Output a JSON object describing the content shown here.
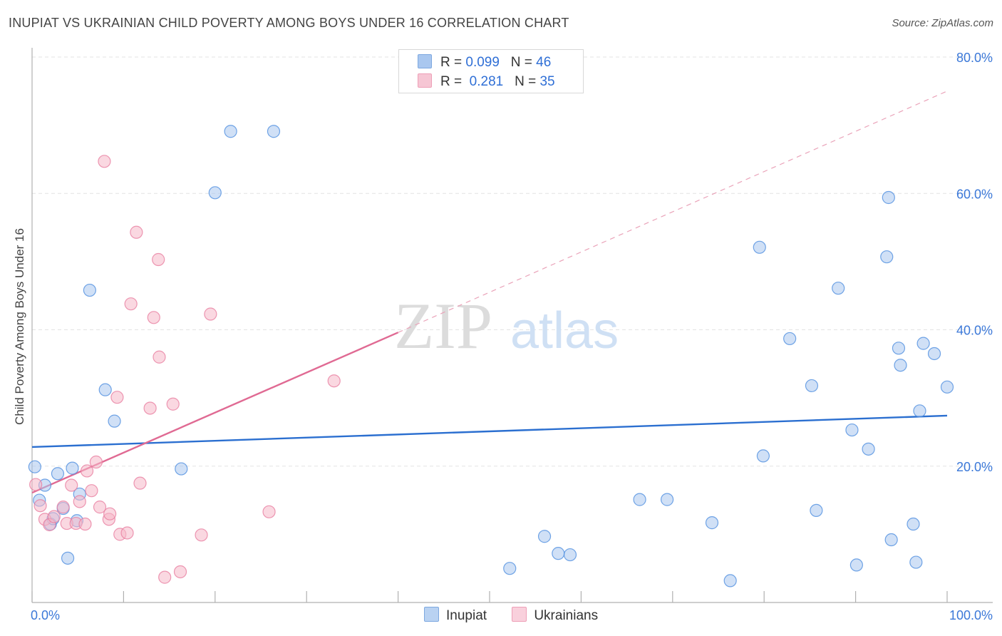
{
  "header": {
    "title": "INUPIAT VS UKRAINIAN CHILD POVERTY AMONG BOYS UNDER 16 CORRELATION CHART",
    "source": "Source: ZipAtlas.com"
  },
  "watermark": {
    "zip": "ZIP",
    "atlas": "atlas"
  },
  "legend": {
    "rows": [
      {
        "r_label": "R =",
        "r_value": "0.099",
        "n_label": "N =",
        "n_value": "46",
        "color": "#a9c7ef"
      },
      {
        "r_label": "R =",
        "r_value": "0.281",
        "n_label": "N =",
        "n_value": "35",
        "color": "#f6b8c9"
      }
    ]
  },
  "bottom_legend": {
    "items": [
      {
        "label": "Inupiat",
        "color": "#a9c7ef"
      },
      {
        "label": "Ukrainians",
        "color": "#f6b8c9"
      }
    ]
  },
  "chart_data": {
    "type": "scatter",
    "title": "INUPIAT VS UKRAINIAN CHILD POVERTY AMONG BOYS UNDER 16 CORRELATION CHART",
    "xlabel": "",
    "ylabel": "Child Poverty Among Boys Under 16",
    "xlim": [
      0,
      100
    ],
    "ylim": [
      0,
      80
    ],
    "x_tick_labels": [
      "0.0%",
      "100.0%"
    ],
    "y_ticks": [
      20,
      40,
      60,
      80
    ],
    "y_tick_labels": [
      "20.0%",
      "40.0%",
      "60.0%",
      "80.0%"
    ],
    "grid": true,
    "legend_position": "top-center",
    "series": [
      {
        "name": "Inupiat",
        "color": "#4f8fe0",
        "fill": "#a9c7ef",
        "trend": {
          "x": [
            0,
            100
          ],
          "y": [
            22.8,
            27.4
          ],
          "color": "#2b6fd0"
        },
        "points": [
          [
            0.3,
            19.9
          ],
          [
            0.8,
            15.0
          ],
          [
            1.4,
            17.2
          ],
          [
            2.0,
            11.5
          ],
          [
            2.3,
            12.3
          ],
          [
            2.8,
            18.9
          ],
          [
            3.4,
            13.8
          ],
          [
            3.9,
            6.5
          ],
          [
            4.4,
            19.7
          ],
          [
            4.9,
            12.0
          ],
          [
            5.2,
            15.9
          ],
          [
            6.3,
            45.8
          ],
          [
            8.0,
            31.2
          ],
          [
            9.0,
            26.6
          ],
          [
            16.3,
            19.6
          ],
          [
            20.0,
            60.1
          ],
          [
            21.7,
            69.1
          ],
          [
            26.4,
            69.1
          ],
          [
            52.2,
            5.0
          ],
          [
            56.0,
            9.7
          ],
          [
            57.5,
            7.2
          ],
          [
            58.8,
            7.0
          ],
          [
            66.4,
            15.1
          ],
          [
            69.4,
            15.1
          ],
          [
            74.3,
            11.7
          ],
          [
            76.3,
            3.2
          ],
          [
            79.5,
            52.1
          ],
          [
            79.9,
            21.5
          ],
          [
            82.8,
            38.7
          ],
          [
            85.2,
            31.8
          ],
          [
            85.7,
            13.5
          ],
          [
            88.1,
            46.1
          ],
          [
            89.6,
            25.3
          ],
          [
            90.1,
            5.5
          ],
          [
            91.4,
            22.5
          ],
          [
            93.4,
            50.7
          ],
          [
            93.6,
            59.4
          ],
          [
            93.9,
            9.2
          ],
          [
            94.7,
            37.3
          ],
          [
            94.9,
            34.8
          ],
          [
            96.3,
            11.5
          ],
          [
            96.6,
            5.9
          ],
          [
            97.0,
            28.1
          ],
          [
            97.4,
            38.0
          ],
          [
            98.6,
            36.5
          ],
          [
            100.0,
            31.6
          ]
        ]
      },
      {
        "name": "Ukrainians",
        "color": "#e87ea0",
        "fill": "#f6b8c9",
        "trend": {
          "x": [
            0,
            40
          ],
          "y": [
            16.1,
            39.6
          ],
          "color": "#e06a93"
        },
        "trend_ext": {
          "x": [
            40,
            100
          ],
          "y": [
            39.6,
            75.0
          ]
        },
        "points": [
          [
            0.4,
            17.3
          ],
          [
            0.9,
            14.2
          ],
          [
            1.4,
            12.2
          ],
          [
            1.9,
            11.4
          ],
          [
            2.4,
            12.6
          ],
          [
            3.4,
            14.0
          ],
          [
            3.8,
            11.6
          ],
          [
            4.3,
            17.2
          ],
          [
            4.8,
            11.6
          ],
          [
            5.2,
            14.8
          ],
          [
            5.8,
            11.5
          ],
          [
            6.0,
            19.3
          ],
          [
            6.5,
            16.4
          ],
          [
            7.0,
            20.6
          ],
          [
            7.4,
            14.0
          ],
          [
            7.9,
            64.7
          ],
          [
            8.4,
            12.2
          ],
          [
            8.5,
            13.0
          ],
          [
            9.3,
            30.1
          ],
          [
            9.6,
            10.0
          ],
          [
            10.4,
            10.2
          ],
          [
            10.8,
            43.8
          ],
          [
            11.4,
            54.3
          ],
          [
            11.8,
            17.5
          ],
          [
            12.9,
            28.5
          ],
          [
            13.3,
            41.8
          ],
          [
            13.8,
            50.3
          ],
          [
            13.9,
            36.0
          ],
          [
            14.5,
            3.7
          ],
          [
            15.4,
            29.1
          ],
          [
            16.2,
            4.5
          ],
          [
            18.5,
            9.9
          ],
          [
            19.5,
            42.3
          ],
          [
            25.9,
            13.3
          ],
          [
            33.0,
            32.5
          ]
        ]
      }
    ]
  }
}
